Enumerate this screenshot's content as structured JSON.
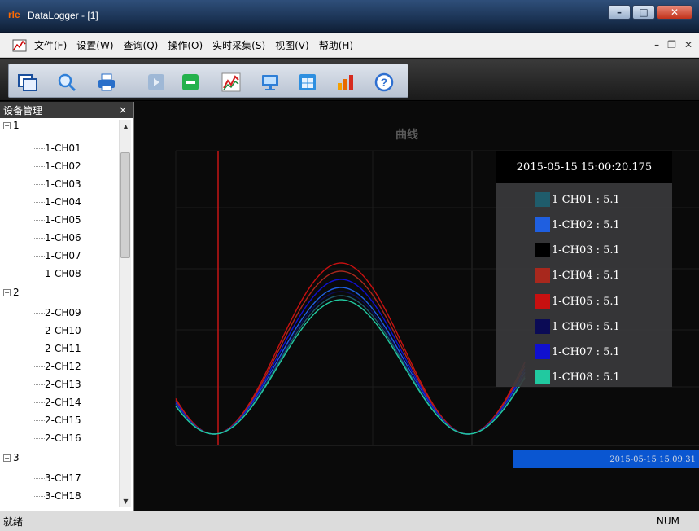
{
  "window": {
    "title": "DataLogger - [1]",
    "app_icon_text": "rle"
  },
  "menu": {
    "items": [
      "文件(F)",
      "设置(W)",
      "查询(Q)",
      "操作(O)",
      "实时采集(S)",
      "视图(V)",
      "帮助(H)"
    ]
  },
  "toolbar": {
    "icons": [
      "window-icon",
      "search-icon",
      "print-icon",
      "play-icon",
      "stop-icon",
      "chart-icon",
      "monitor-icon",
      "table-icon",
      "bar-chart-icon",
      "help-icon"
    ]
  },
  "sidebar": {
    "title": "设备管理",
    "close": "×",
    "groups": [
      {
        "label": "1",
        "channels": [
          "1-CH01",
          "1-CH02",
          "1-CH03",
          "1-CH04",
          "1-CH05",
          "1-CH06",
          "1-CH07",
          "1-CH08"
        ]
      },
      {
        "label": "2",
        "channels": [
          "2-CH09",
          "2-CH10",
          "2-CH11",
          "2-CH12",
          "2-CH13",
          "2-CH14",
          "2-CH15",
          "2-CH16"
        ]
      },
      {
        "label": "3",
        "channels": [
          "3-CH17",
          "3-CH18"
        ]
      }
    ]
  },
  "chart": {
    "title": "曲线",
    "legend_timestamp": "2015-05-15 15:00:20.175",
    "legend": [
      {
        "label": "1-CH01 : 5.1",
        "color": "#1f5c6b"
      },
      {
        "label": "1-CH02 : 5.1",
        "color": "#1f5fe0"
      },
      {
        "label": "1-CH03 : 5.1",
        "color": "#000000"
      },
      {
        "label": "1-CH04 : 5.1",
        "color": "#a8281d"
      },
      {
        "label": "1-CH05 : 5.1",
        "color": "#c81010"
      },
      {
        "label": "1-CH06 : 5.1",
        "color": "#0b0b55"
      },
      {
        "label": "1-CH07 : 5.1",
        "color": "#1010d0"
      },
      {
        "label": "1-CH08 : 5.1",
        "color": "#21c9a0"
      }
    ],
    "time_bar_label": "2015-05-15 15:09:31"
  },
  "status": {
    "left": "就绪",
    "right": "NUM"
  }
}
